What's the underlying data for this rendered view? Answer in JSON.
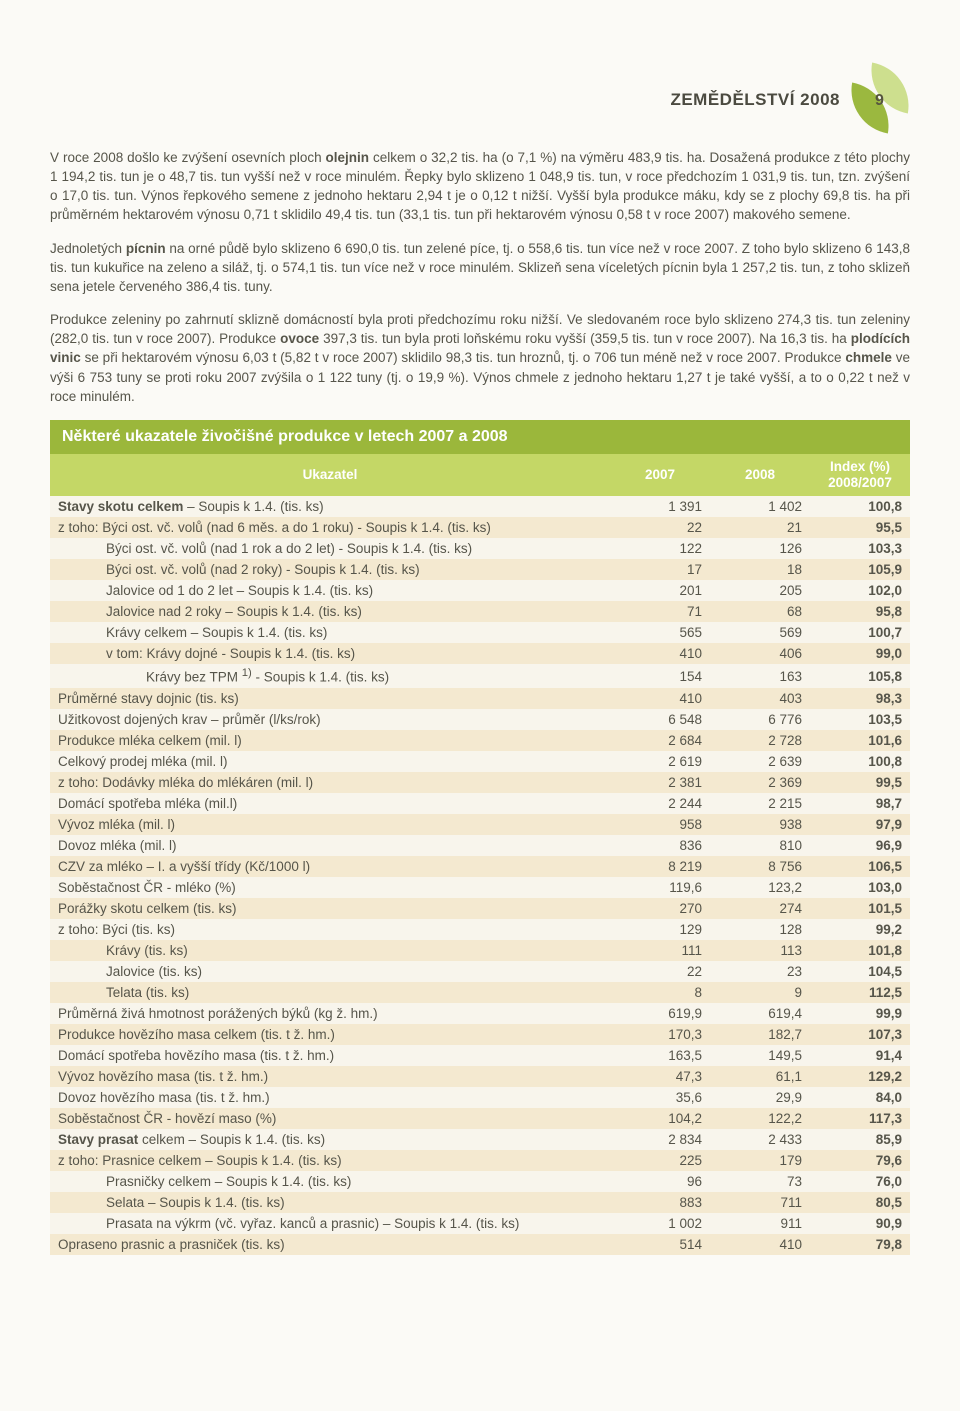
{
  "header": {
    "title": "ZEMĚDĚLSTVÍ 2008",
    "page": "9"
  },
  "paras": {
    "p1": "V roce 2008 došlo ke zvýšení osevních ploch <b>olejnin</b> celkem o 32,2 tis. ha (o 7,1 %) na výměru 483,9 tis. ha. Dosažená produkce z této plochy 1 194,2 tis. tun je o 48,7 tis. tun vyšší než v roce minulém. Řepky bylo sklizeno 1 048,9 tis. tun, v roce předchozím 1 031,9 tis. tun, tzn. zvýšení o 17,0 tis. tun. Výnos řepkového semene z jednoho hektaru 2,94 t je o 0,12 t nižší. Vyšší byla produkce máku, kdy se z plochy 69,8 tis. ha při průměrném hektarovém výnosu 0,71 t sklidilo 49,4 tis. tun (33,1 tis. tun při hektarovém výnosu 0,58 t v roce 2007) makového semene.",
    "p2": "Jednoletých <b>pícnin</b> na orné půdě bylo sklizeno 6 690,0 tis. tun zelené píce, tj. o 558,6 tis. tun více než v roce 2007. Z toho bylo sklizeno 6 143,8 tis. tun kukuřice na zeleno a siláž, tj. o 574,1 tis. tun více než v roce minulém. Sklizeň sena víceletých pícnin byla 1 257,2 tis. tun, z toho sklizeň sena jetele červeného 386,4 tis. tuny.",
    "p3": "Produkce zeleniny po zahrnutí sklizně domácností byla proti předchozímu roku nižší. Ve sledovaném roce bylo sklizeno 274,3 tis. tun zeleniny (282,0 tis. tun v roce 2007). Produkce <b>ovoce</b> 397,3 tis. tun byla proti loňskému roku vyšší (359,5 tis. tun v roce 2007). Na 16,3 tis. ha <b>plodících vinic</b> se při hektarovém výnosu 6,03 t (5,82 t v roce 2007) sklidilo 98,3 tis. tun hroznů, tj. o 706 tun méně než v roce 2007. Produkce <b>chmele</b> ve výši 6 753 tuny se proti roku 2007 zvýšila o 1 122 tuny (tj. o 19,9 %). Výnos chmele z jednoho hektaru 1,27 t je také vyšší, a to o 0,22 t než v roce minulém."
  },
  "table": {
    "title": "Některé ukazatele živočišné produkce v letech 2007 a 2008",
    "headers": {
      "c1": "Ukazatel",
      "c2": "2007",
      "c3": "2008",
      "c4a": "Index (%)",
      "c4b": "2008/2007"
    },
    "rows": [
      {
        "i": 0,
        "l": "<b>Stavy skotu celkem</b> – Soupis k 1.4. (tis. ks)",
        "a": "1 391",
        "b": "1 402",
        "x": "100,8"
      },
      {
        "i": 0,
        "l": "z toho: Býci ost. vč. volů (nad 6 měs. a do 1 roku) - Soupis k 1.4. (tis. ks)",
        "a": "22",
        "b": "21",
        "x": "95,5"
      },
      {
        "i": 48,
        "l": "Býci ost. vč. volů  (nad 1 rok a do 2 let) - Soupis k 1.4. (tis. ks)",
        "a": "122",
        "b": "126",
        "x": "103,3"
      },
      {
        "i": 48,
        "l": "Býci ost. vč. volů (nad 2 roky) - Soupis k 1.4. (tis. ks)",
        "a": "17",
        "b": "18",
        "x": "105,9"
      },
      {
        "i": 48,
        "l": "Jalovice od 1 do 2 let – Soupis k 1.4. (tis. ks)",
        "a": "201",
        "b": "205",
        "x": "102,0"
      },
      {
        "i": 48,
        "l": "Jalovice nad 2 roky – Soupis k 1.4. (tis. ks)",
        "a": "71",
        "b": "68",
        "x": "95,8"
      },
      {
        "i": 48,
        "l": "Krávy celkem – Soupis k 1.4. (tis. ks)",
        "a": "565",
        "b": "569",
        "x": "100,7"
      },
      {
        "i": 48,
        "l": "v tom: Krávy dojné - Soupis k 1.4. (tis. ks)",
        "a": "410",
        "b": "406",
        "x": "99,0"
      },
      {
        "i": 88,
        "l": "Krávy bez TPM <sup>1)</sup> - Soupis k 1.4. (tis. ks)",
        "a": "154",
        "b": "163",
        "x": "105,8"
      },
      {
        "i": 0,
        "l": "Průměrné stavy dojnic (tis. ks)",
        "a": "410",
        "b": "403",
        "x": "98,3"
      },
      {
        "i": 0,
        "l": "Užitkovost dojených krav – průměr (l/ks/rok)",
        "a": "6 548",
        "b": "6 776",
        "x": "103,5"
      },
      {
        "i": 0,
        "l": "Produkce mléka celkem (mil. l)",
        "a": "2 684",
        "b": "2 728",
        "x": "101,6"
      },
      {
        "i": 0,
        "l": "Celkový prodej mléka (mil. l)",
        "a": "2 619",
        "b": "2 639",
        "x": "100,8"
      },
      {
        "i": 0,
        "l": "z toho: Dodávky mléka do mlékáren (mil. l)",
        "a": "2 381",
        "b": "2 369",
        "x": "99,5"
      },
      {
        "i": 0,
        "l": "Domácí spotřeba mléka (mil.l)",
        "a": "2 244",
        "b": "2 215",
        "x": "98,7"
      },
      {
        "i": 0,
        "l": "Vývoz mléka (mil. l)",
        "a": "958",
        "b": "938",
        "x": "97,9"
      },
      {
        "i": 0,
        "l": "Dovoz mléka (mil. l)",
        "a": "836",
        "b": "810",
        "x": "96,9"
      },
      {
        "i": 0,
        "l": "CZV za mléko – I. a vyšší třídy (Kč/1000 l)",
        "a": "8 219",
        "b": "8 756",
        "x": "106,5"
      },
      {
        "i": 0,
        "l": "Soběstačnost ČR - mléko (%)",
        "a": "119,6",
        "b": "123,2",
        "x": "103,0"
      },
      {
        "i": 0,
        "l": "Porážky skotu celkem (tis. ks)",
        "a": "270",
        "b": "274",
        "x": "101,5"
      },
      {
        "i": 0,
        "l": "z toho: Býci (tis. ks)",
        "a": "129",
        "b": "128",
        "x": "99,2"
      },
      {
        "i": 48,
        "l": "Krávy (tis. ks)",
        "a": "111",
        "b": "113",
        "x": "101,8"
      },
      {
        "i": 48,
        "l": "Jalovice (tis. ks)",
        "a": "22",
        "b": "23",
        "x": "104,5"
      },
      {
        "i": 48,
        "l": "Telata (tis. ks)",
        "a": "8",
        "b": "9",
        "x": "112,5"
      },
      {
        "i": 0,
        "l": "Průměrná živá hmotnost porážených býků (kg ž. hm.)",
        "a": "619,9",
        "b": "619,4",
        "x": "99,9"
      },
      {
        "i": 0,
        "l": "Produkce hovězího masa celkem (tis. t ž. hm.)",
        "a": "170,3",
        "b": "182,7",
        "x": "107,3"
      },
      {
        "i": 0,
        "l": "Domácí spotřeba hovězího masa (tis. t ž. hm.)",
        "a": "163,5",
        "b": "149,5",
        "x": "91,4"
      },
      {
        "i": 0,
        "l": "Vývoz hovězího masa (tis. t ž. hm.)",
        "a": "47,3",
        "b": "61,1",
        "x": "129,2"
      },
      {
        "i": 0,
        "l": "Dovoz hovězího masa (tis. t ž. hm.)",
        "a": "35,6",
        "b": "29,9",
        "x": "84,0"
      },
      {
        "i": 0,
        "l": "Soběstačnost ČR - hovězí maso (%)",
        "a": "104,2",
        "b": "122,2",
        "x": "117,3"
      },
      {
        "i": 0,
        "l": "<b>Stavy prasat</b> celkem – Soupis k 1.4. (tis. ks)",
        "a": "2 834",
        "b": "2 433",
        "x": "85,9"
      },
      {
        "i": 0,
        "l": "z toho: Prasnice celkem – Soupis k 1.4. (tis. ks)",
        "a": "225",
        "b": "179",
        "x": "79,6"
      },
      {
        "i": 48,
        "l": "Prasničky celkem – Soupis k 1.4. (tis. ks)",
        "a": "96",
        "b": "73",
        "x": "76,0"
      },
      {
        "i": 48,
        "l": "Selata – Soupis k 1.4. (tis. ks)",
        "a": "883",
        "b": "711",
        "x": "80,5"
      },
      {
        "i": 48,
        "l": "Prasata na výkrm (vč. vyřaz. kanců a prasnic) – Soupis k 1.4. (tis. ks)",
        "a": "1 002",
        "b": "911",
        "x": "90,9"
      },
      {
        "i": 0,
        "l": "Opraseno prasnic a prasniček (tis. ks)",
        "a": "514",
        "b": "410",
        "x": "79,8"
      }
    ]
  }
}
